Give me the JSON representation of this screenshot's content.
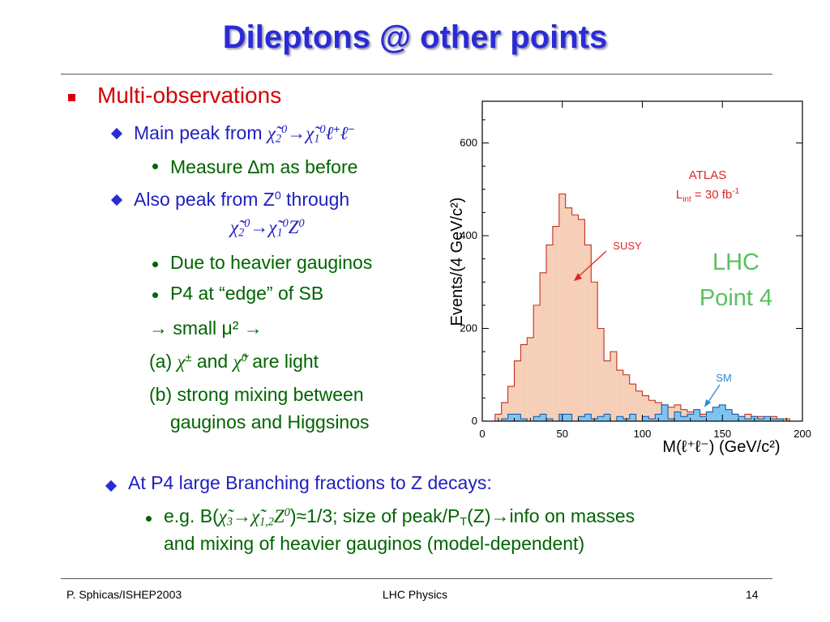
{
  "slide": {
    "title": "Dileptons @ other points",
    "bullets": {
      "l1": "Multi-observations",
      "main_peak_prefix": "Main peak from ",
      "measure": "Measure ∆m as before",
      "also_peak": "Also peak from Z",
      "also_peak_sup": "0",
      "also_peak_suffix": " through",
      "heavier": "Due to heavier gauginos",
      "p4_edge": "P4 at “edge” of SB",
      "small_mu": "→ small μ² →",
      "light_a": "(a) ",
      "light_and": " and ",
      "light_are": " are light",
      "mixing_1": "(b) strong mixing between",
      "mixing_2": "gauginos and Higgsinos",
      "p4_branching": "At P4 large Branching fractions to Z decays:",
      "eg_prefix": "e.g. B(",
      "eg_mid": ")≈1/3; size of peak/P",
      "eg_T": "T",
      "eg_Z": "(Z)",
      "eg_arrow_info": "→info on masses",
      "eg_line2": "and mixing of heavier gauginos (model-dependent)"
    },
    "footer": {
      "left": "P. Sphicas/ISHEP2003",
      "center": "LHC Physics",
      "right": "14"
    },
    "colors": {
      "title": "#2b2bd6",
      "level1": "#d40000",
      "level2": "#1f1fc0",
      "level3": "#006400",
      "susy_fill": "#f6cfb8",
      "susy_line": "#c0301f",
      "sm_fill": "#7ec3f2",
      "lhc_label": "#59c25a"
    }
  },
  "chart_data": {
    "type": "histogram",
    "title": "",
    "xlabel": "M(ℓ⁺ℓ⁻) (GeV/c²)",
    "ylabel": "Events/(4 GeV/c²)",
    "xlim": [
      0,
      200
    ],
    "ylim": [
      0,
      690
    ],
    "bin_width": 4,
    "xticks": [
      0,
      50,
      100,
      150,
      200
    ],
    "yticks": [
      0,
      200,
      400,
      600
    ],
    "experiment_label": "ATLAS",
    "lumi_label": "L",
    "lumi_sub": "int",
    "lumi_value": " = 30 fb",
    "lumi_exp": "-1",
    "lhc_label_1": "LHC",
    "lhc_label_2": "Point 4",
    "series": [
      {
        "name": "SUSY",
        "bin_edges": [
          0,
          4,
          8,
          12,
          16,
          20,
          24,
          28,
          32,
          36,
          40,
          44,
          48,
          52,
          56,
          60,
          64,
          68,
          72,
          76,
          80,
          84,
          88,
          92,
          96,
          100,
          104,
          108,
          112,
          116,
          120,
          124,
          128,
          132,
          136,
          140,
          144,
          148,
          152,
          156,
          160,
          164,
          168,
          172,
          176,
          180,
          184,
          188,
          192,
          196,
          200
        ],
        "values": [
          0,
          0,
          15,
          40,
          75,
          130,
          165,
          180,
          250,
          320,
          380,
          420,
          490,
          460,
          445,
          435,
          380,
          300,
          200,
          130,
          150,
          110,
          100,
          80,
          65,
          55,
          45,
          40,
          35,
          30,
          35,
          25,
          20,
          20,
          15,
          20,
          15,
          25,
          20,
          15,
          10,
          15,
          10,
          10,
          5,
          10,
          5,
          5,
          0,
          0
        ]
      },
      {
        "name": "SM",
        "bin_edges": [
          0,
          4,
          8,
          12,
          16,
          20,
          24,
          28,
          32,
          36,
          40,
          44,
          48,
          52,
          56,
          60,
          64,
          68,
          72,
          76,
          80,
          84,
          88,
          92,
          96,
          100,
          104,
          108,
          112,
          116,
          120,
          124,
          128,
          132,
          136,
          140,
          144,
          148,
          152,
          156,
          160,
          164,
          168,
          172,
          176,
          180,
          184,
          188,
          192,
          196,
          200
        ],
        "values": [
          0,
          0,
          0,
          5,
          15,
          15,
          5,
          0,
          10,
          15,
          5,
          0,
          15,
          15,
          0,
          10,
          15,
          5,
          10,
          15,
          0,
          10,
          5,
          15,
          0,
          10,
          5,
          15,
          35,
          5,
          20,
          10,
          15,
          25,
          10,
          20,
          30,
          35,
          25,
          15,
          10,
          5,
          10,
          5,
          10,
          5,
          5,
          0,
          0,
          0
        ]
      }
    ]
  }
}
